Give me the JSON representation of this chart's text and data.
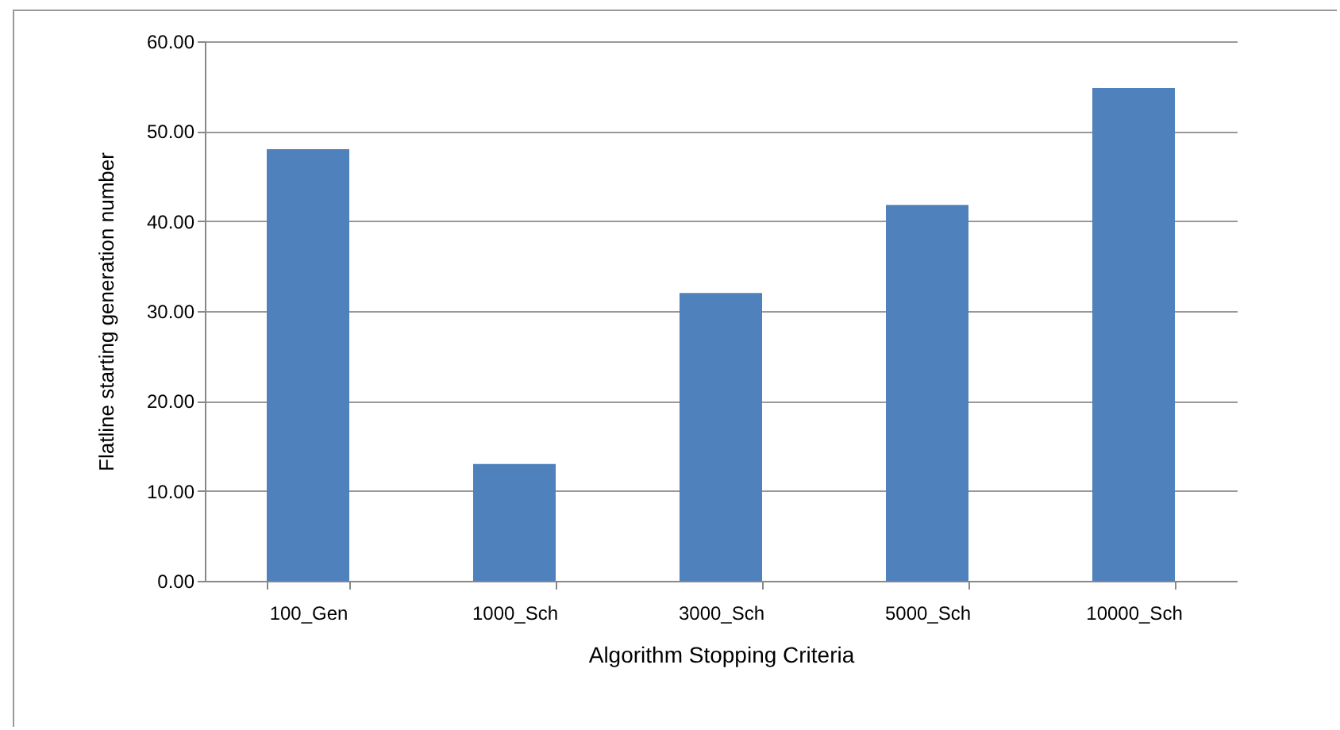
{
  "chart_data": {
    "type": "bar",
    "xlabel": "Algorithm Stopping Criteria",
    "ylabel": "Flatline starting generation number",
    "categories": [
      "100_Gen",
      "1000_Sch",
      "3000_Sch",
      "5000_Sch",
      "10000_Sch"
    ],
    "values": [
      48.0,
      13.0,
      32.0,
      41.8,
      54.8
    ],
    "color": "#4f81bd",
    "ylim": [
      0,
      60
    ],
    "yticks": [
      {
        "value": 0,
        "label": "0.00"
      },
      {
        "value": 10,
        "label": "10.00"
      },
      {
        "value": 20,
        "label": "20.00"
      },
      {
        "value": 30,
        "label": "30.00"
      },
      {
        "value": 40,
        "label": "40.00"
      },
      {
        "value": 50,
        "label": "50.00"
      },
      {
        "value": 60,
        "label": "60.00"
      }
    ],
    "grid": "y"
  }
}
